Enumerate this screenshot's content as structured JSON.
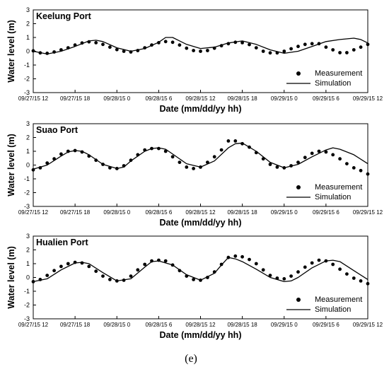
{
  "caption": "(e)",
  "chart_data": [
    {
      "type": "line",
      "title": "Keelung Port",
      "xlabel": "Date (mm/dd/yy hh)",
      "ylabel": "Water level (m)",
      "xlim": [
        0,
        48
      ],
      "ylim": [
        -3,
        3
      ],
      "x_ticks": [
        0,
        6,
        12,
        18,
        24,
        30,
        36,
        42,
        48
      ],
      "x_tick_labels": [
        "09/27/15 12",
        "09/27/15 18",
        "09/28/15 0",
        "09/28/15 6",
        "09/28/15 12",
        "09/28/15 18",
        "09/29/15 0",
        "09/29/15 6",
        "09/29/15 12"
      ],
      "y_ticks": [
        -3,
        -2,
        -1,
        0,
        1,
        2,
        3
      ],
      "legend_position": "bottom-right",
      "series": [
        {
          "name": "Measurement",
          "kind": "scatter",
          "x": [
            0,
            1,
            2,
            3,
            4,
            5,
            6,
            7,
            8,
            9,
            10,
            11,
            12,
            13,
            14,
            15,
            16,
            17,
            18,
            19,
            20,
            21,
            22,
            23,
            24,
            25,
            26,
            27,
            28,
            29,
            30,
            31,
            32,
            33,
            34,
            35,
            36,
            37,
            38,
            39,
            40,
            41,
            42,
            43,
            44,
            45,
            46,
            47,
            48
          ],
          "y": [
            0.03,
            -0.12,
            -0.15,
            -0.05,
            0.1,
            0.25,
            0.45,
            0.6,
            0.68,
            0.62,
            0.5,
            0.3,
            0.12,
            0.0,
            -0.05,
            0.05,
            0.25,
            0.45,
            0.62,
            0.7,
            0.65,
            0.45,
            0.22,
            0.05,
            0.0,
            0.05,
            0.22,
            0.4,
            0.55,
            0.65,
            0.62,
            0.48,
            0.25,
            0.0,
            -0.12,
            -0.12,
            0.0,
            0.18,
            0.35,
            0.5,
            0.55,
            0.55,
            0.3,
            0.1,
            -0.1,
            -0.1,
            0.1,
            0.3,
            0.5
          ]
        },
        {
          "name": "Simulation",
          "kind": "line",
          "x": [
            0,
            2,
            4,
            6,
            8,
            9,
            10,
            12,
            14,
            16,
            18,
            19,
            20,
            22,
            24,
            26,
            28,
            30,
            32,
            34,
            36,
            38,
            40,
            42,
            44,
            46,
            47,
            48
          ],
          "y": [
            0.0,
            -0.2,
            0.0,
            0.35,
            0.75,
            0.8,
            0.7,
            0.25,
            0.0,
            0.2,
            0.65,
            1.0,
            1.0,
            0.5,
            0.2,
            0.3,
            0.6,
            0.75,
            0.5,
            0.1,
            -0.15,
            0.0,
            0.35,
            0.7,
            0.85,
            0.95,
            0.85,
            0.6
          ]
        }
      ]
    },
    {
      "type": "line",
      "title": "Suao Port",
      "xlabel": "Date (mm/dd/yy hh)",
      "ylabel": "Water level (m)",
      "xlim": [
        0,
        48
      ],
      "ylim": [
        -3,
        3
      ],
      "x_ticks": [
        0,
        6,
        12,
        18,
        24,
        30,
        36,
        42,
        48
      ],
      "x_tick_labels": [
        "09/27/15 12",
        "09/27/15 18",
        "09/28/15 0",
        "09/28/15 6",
        "09/28/15 12",
        "09/28/15 18",
        "09/29/15 0",
        "09/29/15 6",
        "09/29/15 12"
      ],
      "y_ticks": [
        -3,
        -2,
        -1,
        0,
        1,
        2,
        3
      ],
      "legend_position": "bottom-right",
      "series": [
        {
          "name": "Measurement",
          "kind": "scatter",
          "x": [
            0,
            1,
            2,
            3,
            4,
            5,
            6,
            7,
            8,
            9,
            10,
            11,
            12,
            13,
            14,
            15,
            16,
            17,
            18,
            19,
            20,
            21,
            22,
            23,
            24,
            25,
            26,
            27,
            28,
            29,
            30,
            31,
            32,
            33,
            34,
            35,
            36,
            37,
            38,
            39,
            40,
            41,
            42,
            43,
            44,
            45,
            46,
            47,
            48
          ],
          "y": [
            -0.35,
            -0.2,
            0.15,
            0.45,
            0.8,
            1.0,
            1.05,
            0.95,
            0.65,
            0.35,
            0.05,
            -0.2,
            -0.25,
            -0.05,
            0.35,
            0.75,
            1.1,
            1.2,
            1.2,
            1.0,
            0.6,
            0.2,
            -0.15,
            -0.25,
            -0.15,
            0.2,
            0.6,
            1.1,
            1.75,
            1.75,
            1.55,
            1.3,
            0.9,
            0.45,
            0.05,
            -0.15,
            -0.2,
            -0.05,
            0.2,
            0.55,
            0.85,
            1.0,
            0.95,
            0.75,
            0.45,
            0.1,
            -0.2,
            -0.4,
            -0.65
          ]
        },
        {
          "name": "Simulation",
          "kind": "line",
          "x": [
            0,
            2,
            4,
            5,
            6,
            7,
            8,
            10,
            12,
            13,
            14,
            16,
            17,
            18,
            19,
            20,
            22,
            24,
            26,
            28,
            29,
            30,
            32,
            34,
            36,
            38,
            40,
            42,
            43,
            44,
            46,
            48
          ],
          "y": [
            -0.3,
            0.0,
            0.65,
            0.95,
            1.05,
            1.0,
            0.75,
            0.05,
            -0.25,
            -0.15,
            0.3,
            1.0,
            1.2,
            1.25,
            1.15,
            0.8,
            0.1,
            -0.15,
            0.3,
            1.25,
            1.55,
            1.6,
            1.0,
            0.2,
            -0.2,
            0.05,
            0.6,
            1.1,
            1.25,
            1.15,
            0.75,
            0.1
          ]
        }
      ]
    },
    {
      "type": "line",
      "title": "Hualien Port",
      "xlabel": "Date (mm/dd/yy hh)",
      "ylabel": "Water level (m)",
      "xlim": [
        0,
        48
      ],
      "ylim": [
        -3,
        3
      ],
      "x_ticks": [
        0,
        6,
        12,
        18,
        24,
        30,
        36,
        42,
        48
      ],
      "x_tick_labels": [
        "09/27/15 12",
        "09/27/15 18",
        "09/28/15 0",
        "09/28/15 6",
        "09/28/15 12",
        "09/28/15 18",
        "09/29/15 0",
        "09/29/15 6",
        "09/29/15 12"
      ],
      "y_ticks": [
        -3,
        -2,
        -1,
        0,
        1,
        2,
        3
      ],
      "legend_position": "bottom-right",
      "series": [
        {
          "name": "Measurement",
          "kind": "scatter",
          "x": [
            0,
            1,
            2,
            3,
            4,
            5,
            6,
            7,
            8,
            9,
            10,
            11,
            12,
            13,
            14,
            15,
            16,
            17,
            18,
            19,
            20,
            21,
            22,
            23,
            24,
            25,
            26,
            27,
            28,
            29,
            30,
            31,
            32,
            33,
            34,
            35,
            36,
            37,
            38,
            39,
            40,
            41,
            42,
            43,
            44,
            45,
            46,
            47,
            48
          ],
          "y": [
            -0.3,
            -0.15,
            0.15,
            0.5,
            0.8,
            1.0,
            1.1,
            1.05,
            0.8,
            0.45,
            0.1,
            -0.15,
            -0.25,
            -0.2,
            0.1,
            0.55,
            0.95,
            1.2,
            1.25,
            1.2,
            0.9,
            0.5,
            0.1,
            -0.15,
            -0.2,
            0.0,
            0.4,
            0.95,
            1.45,
            1.55,
            1.5,
            1.3,
            1.0,
            0.55,
            0.15,
            -0.05,
            -0.1,
            0.1,
            0.4,
            0.75,
            1.05,
            1.25,
            1.2,
            0.95,
            0.6,
            0.25,
            -0.05,
            -0.25,
            -0.45
          ]
        },
        {
          "name": "Simulation",
          "kind": "line",
          "x": [
            0,
            2,
            4,
            6,
            7,
            8,
            10,
            12,
            14,
            16,
            17,
            18,
            20,
            22,
            24,
            26,
            27,
            28,
            29,
            30,
            32,
            34,
            36,
            37,
            38,
            40,
            42,
            43,
            44,
            46,
            48
          ],
          "y": [
            -0.3,
            -0.1,
            0.55,
            1.05,
            1.1,
            1.0,
            0.35,
            -0.25,
            -0.1,
            0.75,
            1.15,
            1.2,
            0.9,
            0.2,
            -0.2,
            0.3,
            0.9,
            1.45,
            1.35,
            1.15,
            0.6,
            0.0,
            -0.3,
            -0.25,
            0.0,
            0.7,
            1.2,
            1.25,
            1.15,
            0.5,
            -0.15
          ]
        }
      ]
    }
  ]
}
